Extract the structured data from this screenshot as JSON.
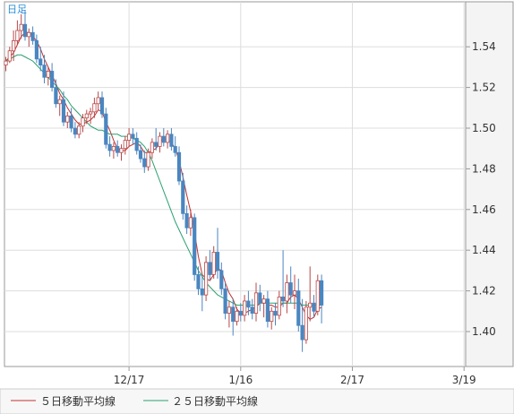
{
  "chart_data": {
    "type": "candlestick",
    "period_label": "日足",
    "x_tick_labels": [
      {
        "label": "12/17",
        "index": 32
      },
      {
        "label": "1/16",
        "index": 61
      },
      {
        "label": "2/17",
        "index": 90
      },
      {
        "label": "3/19",
        "index": 119
      }
    ],
    "ylim": [
      1.38,
      1.56
    ],
    "y_ticks": [
      1.4,
      1.42,
      1.44,
      1.46,
      1.48,
      1.5,
      1.52,
      1.54
    ],
    "y_tick_labels": [
      "1.40",
      "1.42",
      "1.44",
      "1.46",
      "1.48",
      "1.50",
      "1.52",
      "1.54"
    ],
    "grid": true,
    "legend_position": "bottom-left",
    "colors": {
      "up": "#b94848",
      "down": "#4a86c0",
      "ma5": "#c03030",
      "ma25": "#2aa070",
      "grid": "#dddddd",
      "border": "#999999"
    },
    "candles": [
      [
        1.531,
        1.535,
        1.528,
        1.533
      ],
      [
        1.533,
        1.54,
        1.532,
        1.538
      ],
      [
        1.538,
        1.548,
        1.533,
        1.543
      ],
      [
        1.543,
        1.553,
        1.541,
        1.548
      ],
      [
        1.548,
        1.556,
        1.544,
        1.551
      ],
      [
        1.551,
        1.558,
        1.543,
        1.545
      ],
      [
        1.545,
        1.549,
        1.54,
        1.547
      ],
      [
        1.547,
        1.55,
        1.541,
        1.543
      ],
      [
        1.543,
        1.546,
        1.532,
        1.534
      ],
      [
        1.534,
        1.54,
        1.528,
        1.531
      ],
      [
        1.531,
        1.536,
        1.522,
        1.525
      ],
      [
        1.525,
        1.53,
        1.521,
        1.528
      ],
      [
        1.528,
        1.532,
        1.518,
        1.52
      ],
      [
        1.52,
        1.524,
        1.51,
        1.512
      ],
      [
        1.512,
        1.516,
        1.506,
        1.514
      ],
      [
        1.514,
        1.518,
        1.501,
        1.503
      ],
      [
        1.503,
        1.508,
        1.5,
        1.506
      ],
      [
        1.506,
        1.51,
        1.498,
        1.5
      ],
      [
        1.5,
        1.503,
        1.495,
        1.497
      ],
      [
        1.497,
        1.503,
        1.495,
        1.501
      ],
      [
        1.501,
        1.507,
        1.498,
        1.505
      ],
      [
        1.505,
        1.509,
        1.502,
        1.507
      ],
      [
        1.507,
        1.51,
        1.502,
        1.508
      ],
      [
        1.508,
        1.515,
        1.505,
        1.512
      ],
      [
        1.512,
        1.518,
        1.509,
        1.515
      ],
      [
        1.515,
        1.518,
        1.505,
        1.507
      ],
      [
        1.507,
        1.51,
        1.49,
        1.492
      ],
      [
        1.492,
        1.496,
        1.486,
        1.489
      ],
      [
        1.489,
        1.493,
        1.485,
        1.491
      ],
      [
        1.491,
        1.494,
        1.486,
        1.488
      ],
      [
        1.488,
        1.492,
        1.484,
        1.49
      ],
      [
        1.49,
        1.496,
        1.487,
        1.494
      ],
      [
        1.494,
        1.5,
        1.491,
        1.497
      ],
      [
        1.497,
        1.5,
        1.492,
        1.495
      ],
      [
        1.495,
        1.498,
        1.487,
        1.489
      ],
      [
        1.489,
        1.492,
        1.483,
        1.485
      ],
      [
        1.485,
        1.489,
        1.478,
        1.481
      ],
      [
        1.481,
        1.49,
        1.479,
        1.488
      ],
      [
        1.488,
        1.495,
        1.485,
        1.493
      ],
      [
        1.493,
        1.5,
        1.489,
        1.491
      ],
      [
        1.491,
        1.498,
        1.488,
        1.496
      ],
      [
        1.496,
        1.5,
        1.491,
        1.493
      ],
      [
        1.493,
        1.499,
        1.49,
        1.497
      ],
      [
        1.497,
        1.5,
        1.489,
        1.491
      ],
      [
        1.491,
        1.496,
        1.486,
        1.488
      ],
      [
        1.488,
        1.491,
        1.472,
        1.474
      ],
      [
        1.474,
        1.478,
        1.455,
        1.458
      ],
      [
        1.458,
        1.462,
        1.448,
        1.451
      ],
      [
        1.451,
        1.46,
        1.447,
        1.456
      ],
      [
        1.456,
        1.458,
        1.425,
        1.428
      ],
      [
        1.428,
        1.432,
        1.418,
        1.421
      ],
      [
        1.421,
        1.428,
        1.41,
        1.418
      ],
      [
        1.418,
        1.437,
        1.415,
        1.434
      ],
      [
        1.434,
        1.44,
        1.425,
        1.428
      ],
      [
        1.428,
        1.442,
        1.426,
        1.439
      ],
      [
        1.439,
        1.451,
        1.426,
        1.43
      ],
      [
        1.43,
        1.434,
        1.418,
        1.421
      ],
      [
        1.421,
        1.424,
        1.406,
        1.409
      ],
      [
        1.409,
        1.415,
        1.402,
        1.412
      ],
      [
        1.412,
        1.416,
        1.398,
        1.405
      ],
      [
        1.405,
        1.412,
        1.403,
        1.41
      ],
      [
        1.41,
        1.414,
        1.405,
        1.408
      ],
      [
        1.408,
        1.418,
        1.405,
        1.415
      ],
      [
        1.415,
        1.42,
        1.408,
        1.412
      ],
      [
        1.412,
        1.416,
        1.406,
        1.409
      ],
      [
        1.409,
        1.424,
        1.405,
        1.419
      ],
      [
        1.419,
        1.423,
        1.41,
        1.414
      ],
      [
        1.414,
        1.418,
        1.407,
        1.416
      ],
      [
        1.416,
        1.42,
        1.402,
        1.405
      ],
      [
        1.405,
        1.412,
        1.401,
        1.41
      ],
      [
        1.41,
        1.414,
        1.403,
        1.408
      ],
      [
        1.408,
        1.42,
        1.406,
        1.417
      ],
      [
        1.417,
        1.44,
        1.412,
        1.415
      ],
      [
        1.415,
        1.428,
        1.409,
        1.424
      ],
      [
        1.424,
        1.432,
        1.414,
        1.418
      ],
      [
        1.418,
        1.428,
        1.411,
        1.42
      ],
      [
        1.42,
        1.426,
        1.4,
        1.403
      ],
      [
        1.403,
        1.416,
        1.39,
        1.396
      ],
      [
        1.396,
        1.415,
        1.394,
        1.412
      ],
      [
        1.412,
        1.432,
        1.405,
        1.414
      ],
      [
        1.414,
        1.418,
        1.407,
        1.41
      ],
      [
        1.41,
        1.428,
        1.408,
        1.425
      ],
      [
        1.425,
        1.428,
        1.404,
        1.413
      ]
    ],
    "series": [
      {
        "name": "５日移動平均線",
        "values": [
          1.533,
          1.535,
          1.537,
          1.541,
          1.545,
          1.547,
          1.547,
          1.545,
          1.543,
          1.539,
          1.534,
          1.53,
          1.526,
          1.522,
          1.517,
          1.514,
          1.51,
          1.507,
          1.504,
          1.502,
          1.502,
          1.503,
          1.504,
          1.506,
          1.509,
          1.508,
          1.503,
          1.499,
          1.494,
          1.49,
          1.489,
          1.489,
          1.491,
          1.492,
          1.493,
          1.491,
          1.488,
          1.488,
          1.489,
          1.49,
          1.493,
          1.495,
          1.494,
          1.493,
          1.49,
          1.484,
          1.476,
          1.467,
          1.459,
          1.449,
          1.437,
          1.428,
          1.426,
          1.425,
          1.428,
          1.431,
          1.43,
          1.424,
          1.419,
          1.416,
          1.411,
          1.409,
          1.409,
          1.41,
          1.411,
          1.412,
          1.414,
          1.415,
          1.413,
          1.413,
          1.412,
          1.412,
          1.414,
          1.414,
          1.417,
          1.418,
          1.416,
          1.412,
          1.408,
          1.406,
          1.407,
          1.411,
          1.412
        ]
      },
      {
        "name": "２５日移動平均線",
        "values": [
          1.533,
          1.534,
          1.535,
          1.536,
          1.536,
          1.535,
          1.534,
          1.533,
          1.531,
          1.529,
          1.527,
          1.525,
          1.523,
          1.521,
          1.519,
          1.516,
          1.514,
          1.511,
          1.509,
          1.507,
          1.505,
          1.503,
          1.501,
          1.5,
          1.499,
          1.499,
          1.498,
          1.497,
          1.497,
          1.497,
          1.496,
          1.496,
          1.496,
          1.495,
          1.494,
          1.493,
          1.491,
          1.488,
          1.484,
          1.479,
          1.474,
          1.469,
          1.464,
          1.459,
          1.454,
          1.45,
          1.446,
          1.442,
          1.438,
          1.434,
          1.43,
          1.427,
          1.424,
          1.422,
          1.42,
          1.418,
          1.417,
          1.416,
          1.415,
          1.414,
          1.413,
          1.413,
          1.413,
          1.413,
          1.413,
          1.413,
          1.414,
          1.414,
          1.414,
          1.414,
          1.414,
          1.414,
          1.414,
          1.414,
          1.414,
          1.414,
          1.414,
          1.413,
          1.413,
          1.413,
          1.413,
          1.413,
          1.413
        ]
      }
    ]
  }
}
